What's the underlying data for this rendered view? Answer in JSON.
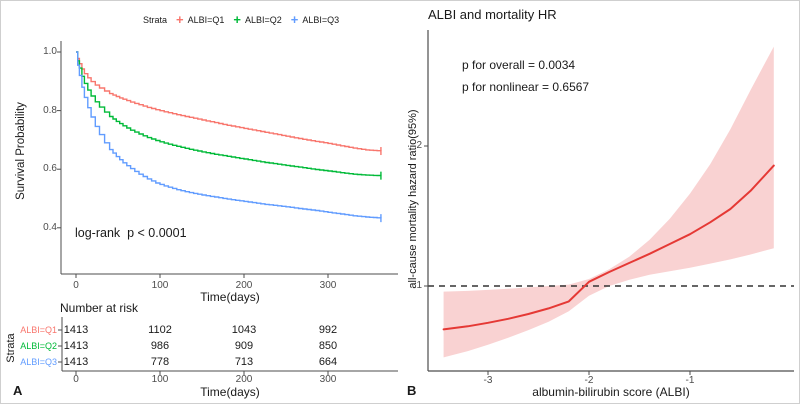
{
  "panelA": {
    "label": "A",
    "y_tick_labels": [
      "1.0",
      "0.8",
      "0.6",
      "0.4"
    ],
    "x_tick_labels": [
      "0",
      "100",
      "200",
      "300"
    ]
  },
  "panelB": {
    "label": "B",
    "y_tick_labels": [
      "2",
      "1"
    ],
    "x_tick_labels": [
      "-3",
      "-2",
      "-1"
    ]
  },
  "chart_data": [
    {
      "type": "line",
      "subtype": "kaplan-meier-survival",
      "legend_title": "Strata",
      "xlabel": "Time(days)",
      "ylabel": "Survival Probability",
      "annotation": "log-rank  p < 0.0001",
      "xlim": [
        0,
        380
      ],
      "ylim": [
        0.3,
        1.0
      ],
      "x_ticks": [
        0,
        100,
        200,
        300
      ],
      "y_ticks": [
        1.0,
        0.8,
        0.6,
        0.4
      ],
      "grid": false,
      "legend_position": "top",
      "x": [
        0,
        2,
        4,
        7,
        10,
        14,
        18,
        23,
        28,
        34,
        40,
        48,
        56,
        65,
        75,
        85,
        95,
        105,
        120,
        135,
        150,
        165,
        180,
        195,
        210,
        225,
        240,
        255,
        270,
        285,
        300,
        315,
        330,
        345,
        363
      ],
      "series": [
        {
          "name": "ALBI=Q1",
          "color": "#F8766D",
          "y": [
            1,
            0.978,
            0.96,
            0.942,
            0.926,
            0.912,
            0.899,
            0.887,
            0.877,
            0.867,
            0.858,
            0.848,
            0.839,
            0.829,
            0.82,
            0.811,
            0.803,
            0.796,
            0.786,
            0.777,
            0.768,
            0.759,
            0.75,
            0.742,
            0.734,
            0.726,
            0.718,
            0.71,
            0.702,
            0.695,
            0.688,
            0.68,
            0.672,
            0.666,
            0.662
          ]
        },
        {
          "name": "ALBI=Q2",
          "color": "#00BA38",
          "y": [
            1,
            0.97,
            0.945,
            0.917,
            0.893,
            0.87,
            0.85,
            0.83,
            0.812,
            0.795,
            0.78,
            0.763,
            0.748,
            0.733,
            0.72,
            0.708,
            0.698,
            0.689,
            0.678,
            0.668,
            0.659,
            0.651,
            0.644,
            0.637,
            0.63,
            0.623,
            0.617,
            0.611,
            0.605,
            0.599,
            0.594,
            0.588,
            0.583,
            0.58,
            0.578
          ]
        },
        {
          "name": "ALBI=Q3",
          "color": "#619CFF",
          "y": [
            1,
            0.955,
            0.92,
            0.88,
            0.845,
            0.81,
            0.778,
            0.746,
            0.718,
            0.69,
            0.667,
            0.643,
            0.622,
            0.602,
            0.583,
            0.567,
            0.553,
            0.543,
            0.53,
            0.52,
            0.512,
            0.505,
            0.498,
            0.492,
            0.486,
            0.48,
            0.475,
            0.47,
            0.464,
            0.459,
            0.453,
            0.447,
            0.441,
            0.437,
            0.433
          ]
        }
      ],
      "number_at_risk": {
        "title": "Number at risk",
        "times": [
          0,
          100,
          200,
          300
        ],
        "rows": [
          {
            "name": "ALBI=Q1",
            "values": [
              1413,
              1102,
              1043,
              992
            ]
          },
          {
            "name": "ALBI=Q2",
            "values": [
              1413,
              986,
              909,
              850
            ]
          },
          {
            "name": "ALBI=Q3",
            "values": [
              1413,
              778,
              713,
              664
            ]
          }
        ]
      }
    },
    {
      "type": "line",
      "subtype": "restricted-cubic-spline-hazard-ratio",
      "title": "ALBI and mortality HR",
      "xlabel": "albumin-bilirubin score (ALBI)",
      "ylabel": "all-cause mortality hazard ratio(95%)",
      "annotations": [
        "p for overall = 0.0034",
        "p for nonlinear = 0.6567"
      ],
      "xlim": [
        -3.6,
        0
      ],
      "ylim": [
        0.45,
        2.9
      ],
      "x_ticks": [
        -3,
        -2,
        -1
      ],
      "y_ticks": [
        2,
        1
      ],
      "reference_line": 1,
      "line_color": "#E53935",
      "band_color": "#F9D2D2",
      "x": [
        -3.44,
        -3.2,
        -3.0,
        -2.8,
        -2.6,
        -2.4,
        -2.2,
        -2.0,
        -1.8,
        -1.6,
        -1.4,
        -1.2,
        -1.0,
        -0.8,
        -0.6,
        -0.4,
        -0.17
      ],
      "hr": [
        0.69,
        0.712,
        0.737,
        0.766,
        0.8,
        0.84,
        0.89,
        1.03,
        1.1,
        1.165,
        1.23,
        1.3,
        1.37,
        1.455,
        1.55,
        1.68,
        1.86
      ],
      "ci_upper": [
        0.96,
        0.965,
        0.972,
        0.98,
        0.99,
        1.0,
        1.01,
        1.05,
        1.12,
        1.21,
        1.33,
        1.48,
        1.66,
        1.87,
        2.12,
        2.4,
        2.71
      ],
      "ci_lower": [
        0.49,
        0.535,
        0.58,
        0.63,
        0.685,
        0.745,
        0.82,
        0.93,
        1.0,
        1.045,
        1.08,
        1.105,
        1.13,
        1.16,
        1.19,
        1.225,
        1.27
      ]
    }
  ]
}
